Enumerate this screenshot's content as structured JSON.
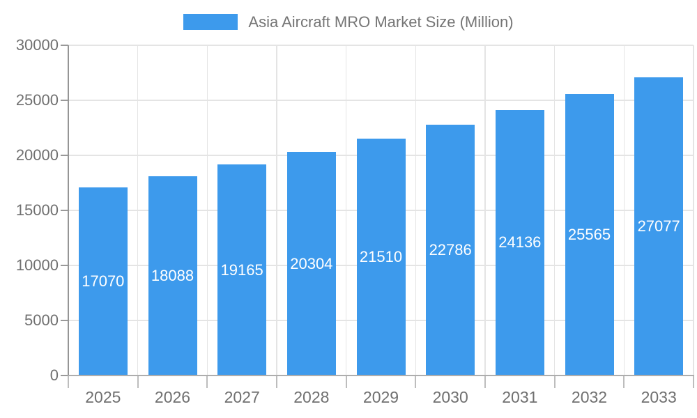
{
  "legend": {
    "label": "Asia Aircraft MRO Market Size (Million)"
  },
  "chart_data": {
    "type": "bar",
    "title": "Asia Aircraft MRO Market Size (Million)",
    "categories": [
      "2025",
      "2026",
      "2027",
      "2028",
      "2029",
      "2030",
      "2031",
      "2032",
      "2033"
    ],
    "values": [
      17070,
      18088,
      19165,
      20304,
      21510,
      22786,
      24136,
      25565,
      27077
    ],
    "xlabel": "",
    "ylabel": "",
    "ylim": [
      0,
      30000
    ],
    "yticks": [
      0,
      5000,
      10000,
      15000,
      20000,
      25000,
      30000
    ],
    "grid": true,
    "legend_position": "top-center",
    "value_labels": "inside-middle",
    "colors": {
      "bar_fill": "#3D9AEC",
      "value_label_text": "#FFFFFF",
      "grid_line": "#E4E4E4",
      "y_axis_line": "#959595",
      "x_axis_line": "#ADADAD",
      "y_tick": "#999999",
      "x_tick": "#BDBDBD",
      "axis_label_text": "#707070",
      "legend_text": "#757575"
    }
  }
}
